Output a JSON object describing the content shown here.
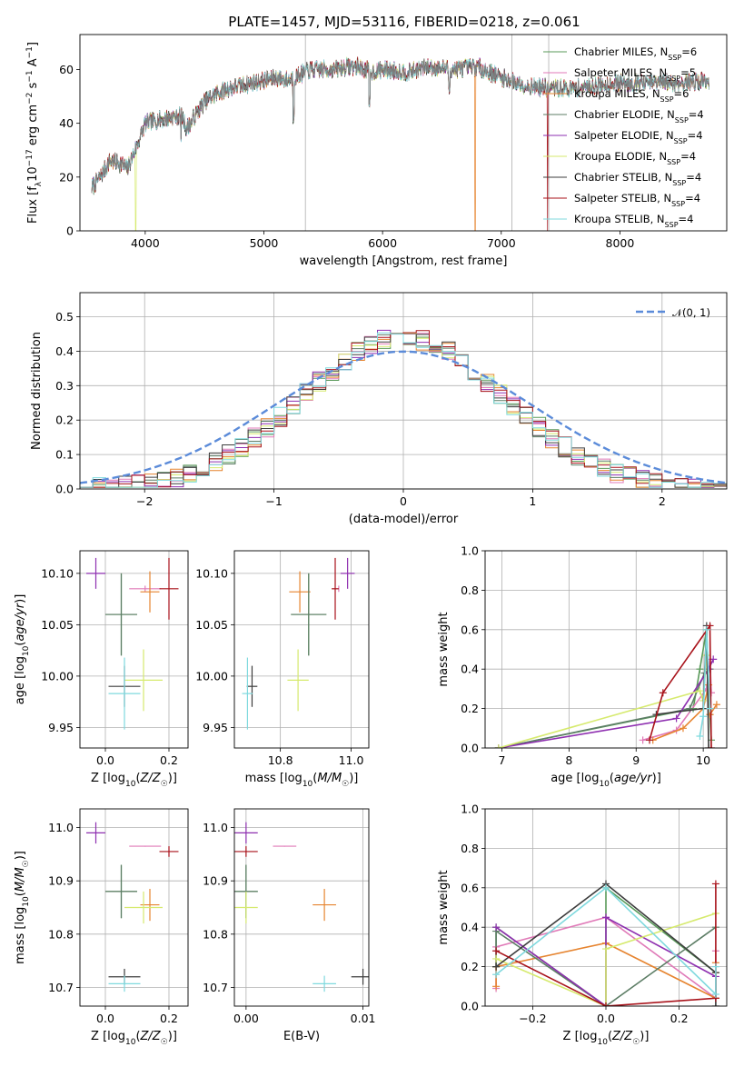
{
  "figure_title": "PLATE=1457, MJD=53116, FIBERID=0218, z=0.061",
  "colors": {
    "chabrier_miles": "#5a9a5a",
    "salpeter_miles": "#e07ab8",
    "kroupa_miles": "#e6842f",
    "chabrier_elodie": "#5c7d65",
    "salpeter_elodie": "#8e2fb0",
    "kroupa_elodie": "#d6ea6e",
    "chabrier_stelib": "#3d3d3d",
    "salpeter_stelib": "#a8121a",
    "kroupa_stelib": "#7fd9de",
    "gaussian": "#5b8bd9"
  },
  "models": [
    {
      "key": "chabrier_miles",
      "name": "Chabrier MILES, N",
      "n": "6"
    },
    {
      "key": "salpeter_miles",
      "name": "Salpeter MILES, N",
      "n": "5"
    },
    {
      "key": "kroupa_miles",
      "name": "Kroupa MILES, N",
      "n": "6"
    },
    {
      "key": "chabrier_elodie",
      "name": "Chabrier ELODIE, N",
      "n": "4"
    },
    {
      "key": "salpeter_elodie",
      "name": "Salpeter ELODIE, N",
      "n": "4"
    },
    {
      "key": "kroupa_elodie",
      "name": "Kroupa ELODIE, N",
      "n": "4"
    },
    {
      "key": "chabrier_stelib",
      "name": "Chabrier STELIB, N",
      "n": "4"
    },
    {
      "key": "salpeter_stelib",
      "name": "Salpeter STELIB, N",
      "n": "4"
    },
    {
      "key": "kroupa_stelib",
      "name": "Kroupa STELIB, N",
      "n": "4"
    }
  ],
  "legend_sub": "SSP",
  "chart_data": [
    {
      "id": "spectrum",
      "type": "line",
      "xlabel": "wavelength [Angstrom, rest frame]",
      "ylabel": "Flux [f_λ 10^-17 erg cm^-2 s^-1 A^-1]",
      "xlim": [
        3450,
        8900
      ],
      "ylim": [
        0,
        73
      ],
      "xticks": [
        4000,
        5000,
        6000,
        7000,
        8000
      ],
      "yticks": [
        0,
        20,
        40,
        60
      ],
      "grid": false,
      "legend": "top-right",
      "continuum": {
        "x": [
          3550,
          3650,
          3700,
          3800,
          3850,
          3950,
          4000,
          4100,
          4200,
          4300,
          4350,
          4500,
          4600,
          4700,
          4800,
          4900,
          5000,
          5100,
          5200,
          5300,
          5400,
          5500,
          5600,
          5700,
          5800,
          5900,
          6000,
          6200,
          6400,
          6600,
          6800,
          7000,
          7200,
          7400,
          7600,
          7800,
          8000,
          8200,
          8500,
          8750
        ],
        "y": [
          16,
          22,
          26,
          25,
          23,
          34,
          40,
          41,
          42,
          43,
          38,
          48,
          51,
          53,
          54,
          55,
          56,
          57,
          56,
          58,
          60,
          60,
          60,
          61,
          61,
          59,
          60,
          59,
          61,
          60,
          61,
          57,
          54,
          53,
          53,
          54,
          55,
          55,
          55,
          56
        ]
      },
      "annotations": [
        {
          "x": 3920,
          "note": "model drop to 0 (Kroupa ELODIE)"
        },
        {
          "x": 6780,
          "note": "model drop to 0 (Kroupa MILES)"
        },
        {
          "x": 7390,
          "note": "model drop to 0 (Salpeter STELIB)"
        }
      ]
    },
    {
      "id": "residuals",
      "type": "line",
      "xlabel": "(data-model)/error",
      "ylabel": "Normed distribution",
      "xlim": [
        -2.5,
        2.5
      ],
      "ylim": [
        0,
        0.57
      ],
      "xticks": [
        -2,
        -1,
        0,
        1,
        2
      ],
      "yticks": [
        0.0,
        0.1,
        0.2,
        0.3,
        0.4,
        0.5
      ],
      "grid": true,
      "legend": "top-right",
      "gaussian_label": "𝒩(0, 1)",
      "bin_width": 0.1,
      "bin_start": -2.5
    },
    {
      "id": "age_vs_Z",
      "type": "scatter",
      "xlabel": "Z [log10(Z/Z☉)]",
      "ylabel": "age  [log10(age/yr)]",
      "xlim": [
        -0.08,
        0.26
      ],
      "ylim": [
        9.93,
        10.122
      ],
      "xticks": [
        0.0,
        0.2
      ],
      "yticks": [
        9.95,
        10.0,
        10.05,
        10.1
      ],
      "grid": true
    },
    {
      "id": "age_vs_mass",
      "type": "scatter",
      "xlabel": "mass [log10(M/M☉)]",
      "xlim": [
        10.67,
        11.05
      ],
      "ylim": [
        9.93,
        10.122
      ],
      "xticks": [
        10.8,
        11.0
      ],
      "yticks": [
        9.95,
        10.0,
        10.05,
        10.1
      ],
      "grid": true
    },
    {
      "id": "weight_vs_age",
      "type": "line",
      "xlabel": "age  [log10(age/yr)]",
      "ylabel": "mass weight",
      "xlim": [
        6.75,
        10.35
      ],
      "ylim": [
        0,
        1
      ],
      "xticks": [
        7,
        8,
        9,
        10
      ],
      "yticks": [
        0.0,
        0.2,
        0.4,
        0.6,
        0.8,
        1.0
      ],
      "grid": true
    },
    {
      "id": "mass_vs_Z",
      "type": "scatter",
      "xlabel": "Z [log10(Z/Z☉)]",
      "ylabel": "mass [log10(M/M☉)]",
      "xlim": [
        -0.08,
        0.26
      ],
      "ylim": [
        10.665,
        11.035
      ],
      "xticks": [
        0.0,
        0.2
      ],
      "yticks": [
        10.7,
        10.8,
        10.9,
        11.0
      ],
      "grid": true
    },
    {
      "id": "mass_vs_ebv",
      "type": "scatter",
      "xlabel": "E(B-V)",
      "xlim": [
        -0.001,
        0.0105
      ],
      "ylim": [
        10.665,
        11.035
      ],
      "xticks": [
        0.0,
        0.01
      ],
      "yticks": [
        10.7,
        10.8,
        10.9,
        11.0
      ],
      "grid": true
    },
    {
      "id": "weight_vs_Z",
      "type": "line",
      "xlabel": "Z [log10(Z/Z☉)]",
      "ylabel": "mass weight",
      "xlim": [
        -0.33,
        0.33
      ],
      "ylim": [
        0,
        1
      ],
      "xticks": [
        -0.2,
        0.0,
        0.2
      ],
      "yticks": [
        0.0,
        0.2,
        0.4,
        0.6,
        0.8,
        1.0
      ],
      "grid": true
    }
  ],
  "fits": [
    {
      "key": "chabrier_miles",
      "Z": 0.05,
      "Zerr": 0.05,
      "age": 10.06,
      "ageErr": 0.04,
      "mass": 10.88,
      "massErr": 0.05,
      "ebv": 0.0,
      "ebvErr": 0.001
    },
    {
      "key": "salpeter_miles",
      "Z": 0.125,
      "Zerr": 0.05,
      "age": 10.085,
      "ageErr": 0.003,
      "mass": 10.965,
      "massErr": 0.001,
      "ebv": 0.0033,
      "ebvErr": 0.001
    },
    {
      "key": "kroupa_miles",
      "Z": 0.14,
      "Zerr": 0.03,
      "age": 10.082,
      "ageErr": 0.02,
      "mass": 10.855,
      "massErr": 0.03,
      "ebv": 0.0067,
      "ebvErr": 0.001
    },
    {
      "key": "chabrier_elodie",
      "Z": 0.05,
      "Zerr": 0.05,
      "age": 10.06,
      "ageErr": 0.04,
      "mass": 10.88,
      "massErr": 0.05,
      "ebv": 0.0,
      "ebvErr": 0.001
    },
    {
      "key": "salpeter_elodie",
      "Z": -0.03,
      "Zerr": 0.03,
      "age": 10.1,
      "ageErr": 0.015,
      "mass": 10.99,
      "massErr": 0.02,
      "ebv": 0.0,
      "ebvErr": 0.001
    },
    {
      "key": "kroupa_elodie",
      "Z": 0.12,
      "Zerr": 0.06,
      "age": 9.996,
      "ageErr": 0.03,
      "mass": 10.85,
      "massErr": 0.03,
      "ebv": 0.0,
      "ebvErr": 0.001
    },
    {
      "key": "chabrier_stelib",
      "Z": 0.06,
      "Zerr": 0.05,
      "age": 9.99,
      "ageErr": 0.02,
      "mass": 10.72,
      "massErr": 0.015,
      "ebv": 0.01,
      "ebvErr": 0.001
    },
    {
      "key": "salpeter_stelib",
      "Z": 0.2,
      "Zerr": 0.03,
      "age": 10.085,
      "ageErr": 0.03,
      "mass": 10.955,
      "massErr": 0.01,
      "ebv": 0.0,
      "ebvErr": 0.001
    },
    {
      "key": "kroupa_stelib",
      "Z": 0.06,
      "Zerr": 0.05,
      "age": 9.983,
      "ageErr": 0.035,
      "mass": 10.707,
      "massErr": 0.015,
      "ebv": 0.0067,
      "ebvErr": 0.001
    }
  ],
  "weights": [
    {
      "key": "chabrier_miles",
      "pts": [
        [
          6.95,
          0.0,
          0.0
        ],
        [
          9.85,
          0.2,
          -0.3
        ],
        [
          9.95,
          0.4,
          -0.3
        ],
        [
          10.05,
          0.6,
          0.0
        ],
        [
          10.1,
          0.17,
          0.3
        ],
        [
          10.12,
          0.04,
          0.3
        ]
      ]
    },
    {
      "key": "salpeter_miles",
      "pts": [
        [
          9.1,
          0.04,
          0.3
        ],
        [
          9.6,
          0.09,
          -0.3
        ],
        [
          10.05,
          0.3,
          -0.3
        ],
        [
          10.1,
          0.45,
          0.0
        ],
        [
          10.12,
          0.28,
          0.3
        ]
      ]
    },
    {
      "key": "kroupa_miles",
      "pts": [
        [
          9.25,
          0.04,
          0.3
        ],
        [
          9.7,
          0.1,
          -0.3
        ],
        [
          10.0,
          0.2,
          -0.3
        ],
        [
          10.08,
          0.32,
          0.0
        ],
        [
          10.1,
          0.17,
          0.3
        ],
        [
          10.2,
          0.22,
          0.3
        ]
      ]
    },
    {
      "key": "chabrier_elodie",
      "pts": [
        [
          6.95,
          0.0,
          0.0
        ],
        [
          9.8,
          0.2,
          -0.3
        ],
        [
          10.02,
          0.38,
          -0.3
        ],
        [
          10.1,
          0.4,
          0.3
        ]
      ]
    },
    {
      "key": "salpeter_elodie",
      "pts": [
        [
          6.95,
          0.0,
          0.0
        ],
        [
          9.6,
          0.15,
          0.3
        ],
        [
          10.08,
          0.4,
          -0.3
        ],
        [
          10.15,
          0.45,
          0.0
        ]
      ]
    },
    {
      "key": "kroupa_elodie",
      "pts": [
        [
          6.95,
          0.0,
          0.0
        ],
        [
          9.95,
          0.29,
          0.0
        ],
        [
          10.0,
          0.24,
          -0.3
        ],
        [
          10.05,
          0.47,
          0.3
        ]
      ]
    },
    {
      "key": "chabrier_stelib",
      "pts": [
        [
          9.3,
          0.17,
          0.3
        ],
        [
          10.0,
          0.2,
          -0.3
        ],
        [
          10.05,
          0.62,
          0.0
        ],
        [
          10.08,
          0.0,
          0.3
        ]
      ]
    },
    {
      "key": "salpeter_stelib",
      "pts": [
        [
          9.2,
          0.04,
          0.3
        ],
        [
          9.4,
          0.28,
          -0.3
        ],
        [
          10.1,
          0.62,
          0.3
        ],
        [
          10.12,
          0.0,
          0.0
        ]
      ]
    },
    {
      "key": "kroupa_stelib",
      "pts": [
        [
          9.95,
          0.06,
          0.3
        ],
        [
          10.0,
          0.16,
          -0.3
        ],
        [
          10.05,
          0.6,
          0.0
        ],
        [
          10.1,
          0.2,
          0.3
        ]
      ]
    }
  ]
}
